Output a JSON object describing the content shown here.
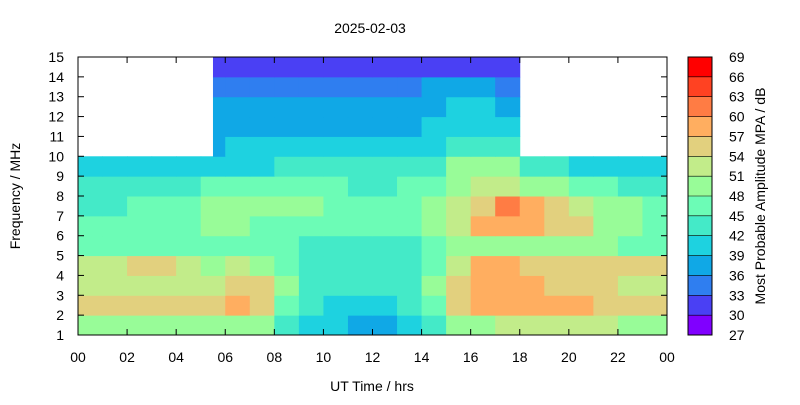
{
  "chart_data": {
    "type": "heatmap",
    "title": "2025-02-03",
    "xlabel": "UT Time / hrs",
    "ylabel": "Frequency / MHz",
    "xlim": [
      0,
      24
    ],
    "ylim": [
      1,
      15
    ],
    "x_tick_labels": [
      "00",
      "02",
      "04",
      "06",
      "08",
      "10",
      "12",
      "14",
      "16",
      "18",
      "20",
      "22",
      "00"
    ],
    "y_tick_labels": [
      "1",
      "2",
      "3",
      "4",
      "5",
      "6",
      "7",
      "8",
      "9",
      "10",
      "11",
      "12",
      "13",
      "14",
      "15"
    ],
    "x_bins_hours": [
      0,
      1,
      2,
      3,
      4,
      5,
      6,
      7,
      8,
      9,
      10,
      11,
      12,
      13,
      14,
      15,
      16,
      17,
      18,
      19,
      20,
      21,
      22,
      23
    ],
    "y_bins_mhz": [
      1,
      2,
      3,
      4,
      5,
      6,
      7,
      8,
      9,
      10,
      11,
      12,
      13,
      14
    ],
    "values_db": [
      [
        50,
        50,
        50,
        50,
        50,
        50,
        50,
        48,
        42,
        40,
        39,
        38,
        38,
        39,
        42,
        48,
        50,
        52,
        52,
        52,
        52,
        52,
        50,
        50
      ],
      [
        55,
        55,
        54,
        54,
        54,
        54,
        58,
        56,
        45,
        42,
        41,
        41,
        41,
        42,
        46,
        54,
        57,
        58,
        58,
        58,
        57,
        56,
        55,
        55
      ],
      [
        52,
        52,
        52,
        52,
        52,
        52,
        56,
        56,
        48,
        44,
        42,
        42,
        42,
        44,
        48,
        55,
        58,
        58,
        57,
        56,
        56,
        55,
        53,
        52
      ],
      [
        52,
        53,
        54,
        54,
        52,
        50,
        52,
        50,
        46,
        44,
        43,
        43,
        43,
        44,
        46,
        52,
        57,
        57,
        56,
        56,
        55,
        55,
        55,
        54
      ],
      [
        46,
        46,
        46,
        45,
        45,
        46,
        46,
        46,
        45,
        44,
        44,
        44,
        44,
        44,
        46,
        48,
        50,
        50,
        50,
        50,
        50,
        49,
        47,
        46
      ],
      [
        46,
        46,
        46,
        46,
        46,
        48,
        48,
        47,
        46,
        45,
        45,
        45,
        46,
        46,
        48,
        52,
        57,
        58,
        58,
        56,
        54,
        50,
        48,
        47
      ],
      [
        44,
        44,
        46,
        46,
        46,
        48,
        48,
        48,
        48,
        48,
        47,
        46,
        46,
        47,
        49,
        52,
        56,
        60,
        59,
        56,
        52,
        50,
        48,
        46
      ],
      [
        42,
        42,
        43,
        44,
        44,
        46,
        46,
        46,
        46,
        46,
        45,
        44,
        44,
        45,
        47,
        50,
        52,
        52,
        50,
        48,
        46,
        45,
        44,
        43
      ],
      [
        40,
        40,
        40,
        40,
        40,
        40,
        40,
        41,
        42,
        43,
        42,
        42,
        42,
        43,
        44,
        48,
        50,
        48,
        44,
        42,
        41,
        41,
        40,
        40
      ],
      [
        null,
        null,
        null,
        null,
        null,
        38,
        39,
        40,
        40,
        40,
        40,
        40,
        40,
        40,
        41,
        44,
        44,
        42,
        null,
        null,
        null,
        null,
        null,
        null
      ],
      [
        null,
        null,
        null,
        null,
        null,
        37,
        38,
        38,
        38,
        38,
        38,
        38,
        38,
        38,
        39,
        41,
        41,
        40,
        null,
        null,
        null,
        null,
        null,
        null
      ],
      [
        null,
        null,
        null,
        null,
        null,
        36,
        36,
        37,
        37,
        37,
        37,
        37,
        37,
        37,
        38,
        39,
        39,
        38,
        null,
        null,
        null,
        null,
        null,
        null
      ],
      [
        null,
        null,
        null,
        null,
        null,
        35,
        35,
        35,
        35,
        35,
        35,
        35,
        35,
        35,
        36,
        36,
        36,
        35,
        null,
        null,
        null,
        null,
        null,
        null
      ],
      [
        null,
        null,
        null,
        null,
        null,
        32,
        32,
        32,
        32,
        32,
        32,
        32,
        32,
        32,
        32,
        32,
        32,
        32,
        null,
        null,
        null,
        null,
        null,
        null
      ]
    ],
    "colorbar": {
      "label": "Most Probable Amplitude MPA / dB",
      "range": [
        27,
        69
      ],
      "tick_labels": [
        "27",
        "30",
        "33",
        "36",
        "39",
        "42",
        "45",
        "48",
        "51",
        "54",
        "57",
        "60",
        "63",
        "66",
        "69"
      ],
      "colors": [
        "#8000ff",
        "#4a40f4",
        "#2f7ef0",
        "#10a8e6",
        "#1ed2e0",
        "#44eac8",
        "#6cfcb6",
        "#98fc98",
        "#c2ec8a",
        "#e2d07e",
        "#ffae60",
        "#ff7c44",
        "#ff4222",
        "#ff0000"
      ]
    },
    "grid": false,
    "legend": "right"
  }
}
